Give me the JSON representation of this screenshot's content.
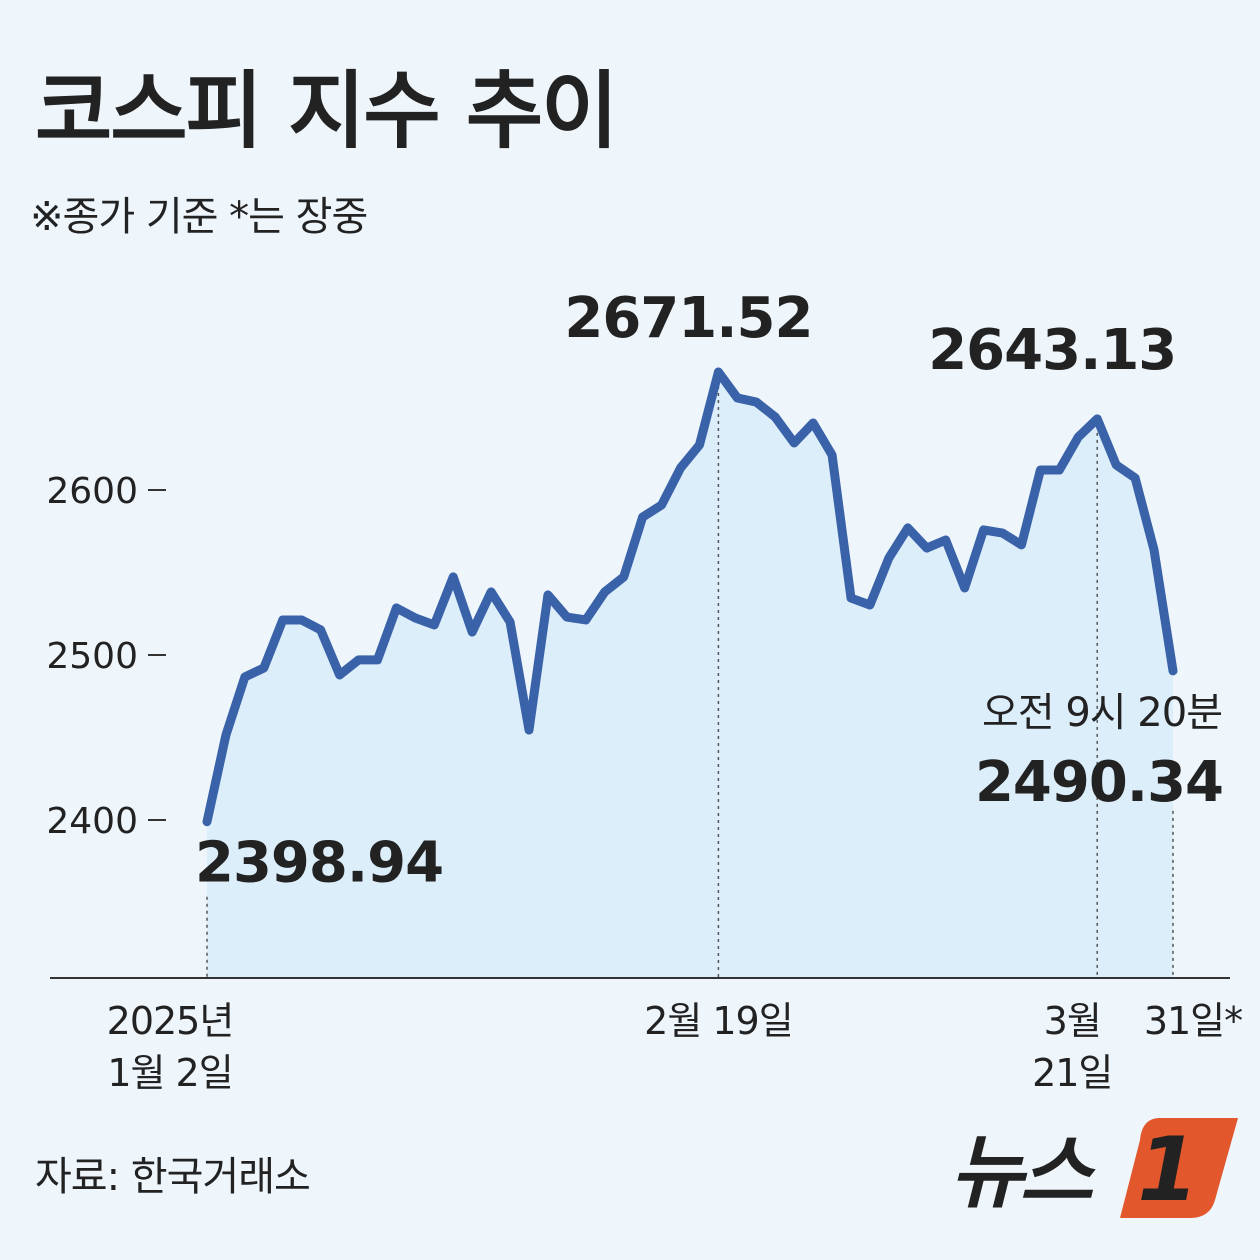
{
  "chart_data": {
    "type": "line",
    "title": "코스피 지수 추이",
    "subtitle": "※종가 기준   *는 장중",
    "annotation": "오전 9시 20분",
    "source": "자료: 한국거래소",
    "logo": {
      "text": "뉴스",
      "mark": "1"
    },
    "categories": [
      "2025년\n1월 2일",
      null,
      null,
      null,
      null,
      null,
      null,
      null,
      null,
      null,
      null,
      null,
      null,
      null,
      null,
      null,
      null,
      null,
      null,
      null,
      null,
      null,
      null,
      null,
      null,
      null,
      null,
      "2월 19일",
      null,
      null,
      null,
      null,
      null,
      null,
      null,
      null,
      null,
      null,
      null,
      null,
      null,
      null,
      null,
      null,
      null,
      null,
      null,
      "3월\n21일",
      null,
      null,
      null,
      "31일*"
    ],
    "values": [
      2398.94,
      2451.5,
      2486.7,
      2492.1,
      2521.2,
      2521.2,
      2515.2,
      2487.9,
      2497.0,
      2497.0,
      2528.5,
      2522.4,
      2518.2,
      2547.3,
      2513.9,
      2538.2,
      2520.0,
      2454.5,
      2536.4,
      2523.0,
      2521.2,
      2538.2,
      2547.3,
      2583.6,
      2590.9,
      2613.3,
      2627.3,
      2671.52,
      2655.8,
      2653.3,
      2644.2,
      2628.5,
      2640.6,
      2621.2,
      2534.5,
      2530.3,
      2558.8,
      2577.0,
      2564.8,
      2569.7,
      2540.6,
      2575.8,
      2573.9,
      2566.7,
      2612.1,
      2612.1,
      2632.1,
      2643.13,
      2615.2,
      2607.3,
      2563.6,
      2490.34
    ],
    "color": "#3a62a8",
    "area_color": "#ddeefb",
    "ylim": [
      2304.2,
      2725
    ],
    "yticks": [
      2400,
      2500,
      2600
    ],
    "grid": false
  }
}
